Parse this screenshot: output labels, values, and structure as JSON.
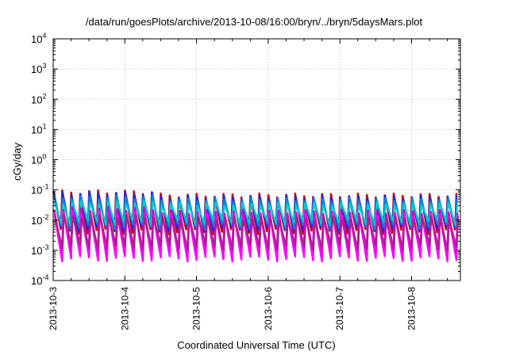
{
  "chart_data": {
    "type": "line",
    "title": "/data/run/goesPlots/archive/2013-10-08/16:00/bryn/../bryn/5daysMars.plot",
    "xlabel": "Coordinated Universal Time (UTC)",
    "ylabel": "cGy/day",
    "x_tick_labels": [
      "2013-10-3",
      "2013-10-4",
      "2013-10-5",
      "2013-10-6",
      "2013-10-7",
      "2013-10-8"
    ],
    "x_range_days": [
      0,
      5.7
    ],
    "y_scale": "log",
    "y_ticks": [
      {
        "base": "10",
        "exp": "4"
      },
      {
        "base": "10",
        "exp": "3"
      },
      {
        "base": "10",
        "exp": "2"
      },
      {
        "base": "10",
        "exp": "1"
      },
      {
        "base": "10",
        "exp": "0"
      },
      {
        "base": "10",
        "exp": "-1"
      },
      {
        "base": "10",
        "exp": "-2"
      },
      {
        "base": "10",
        "exp": "-3"
      },
      {
        "base": "10",
        "exp": "-4"
      }
    ],
    "ylim_log10": [
      -4,
      4
    ],
    "grid": true,
    "sawtooth_period_days": 0.125,
    "series": [
      {
        "color": "#cc0000",
        "peak": 0.07,
        "trough": 0.004,
        "early_peak": 0.09
      },
      {
        "color": "#2222ee",
        "peak": 0.06,
        "trough": 0.005,
        "early_peak": 0.08
      },
      {
        "color": "#0088dd",
        "peak": 0.05,
        "trough": 0.006,
        "early_peak": 0.06
      },
      {
        "color": "#00cccc",
        "peak": 0.035,
        "trough": 0.008,
        "early_peak": 0.04
      },
      {
        "color": "#cc00cc",
        "peak": 0.02,
        "trough": 0.0009,
        "early_peak": 0.025
      },
      {
        "color": "#ff00ff",
        "peak": 0.015,
        "trough": 0.0005,
        "early_peak": 0.018
      },
      {
        "color": "#aa2288",
        "peak": 0.012,
        "trough": 0.0012,
        "early_peak": 0.014
      }
    ]
  }
}
